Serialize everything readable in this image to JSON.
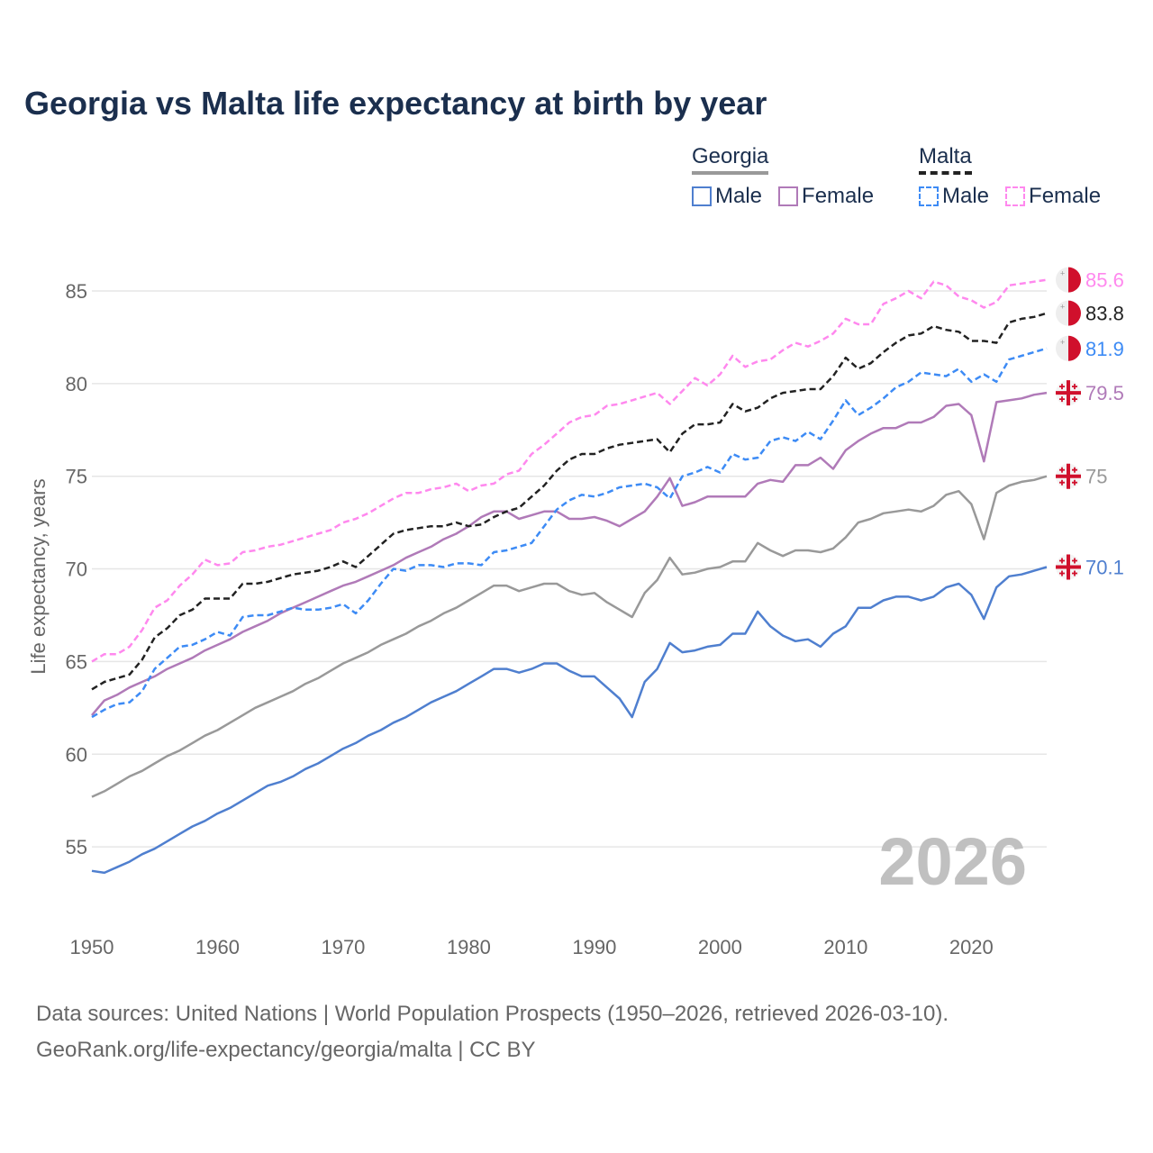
{
  "title": "Georgia vs Malta life expectancy at birth by year",
  "legend": {
    "georgia": {
      "label": "Georgia",
      "items": [
        {
          "label": "Male",
          "color": "#4f7fcf"
        },
        {
          "label": "Female",
          "color": "#b07ab8"
        }
      ]
    },
    "malta": {
      "label": "Malta",
      "items": [
        {
          "label": "Male",
          "color": "#3d8bf5"
        },
        {
          "label": "Female",
          "color": "#ff88ee"
        }
      ]
    }
  },
  "footer": {
    "line1": "Data sources: United Nations | World Population Prospects (1950–2026, retrieved 2026-03-10).",
    "line2": "GeoRank.org/life-expectancy/georgia/malta | CC BY"
  },
  "chart_data": {
    "type": "line",
    "title": "Georgia vs Malta life expectancy at birth by year",
    "xlabel": "",
    "ylabel": "Life expectancy, years",
    "xlim": [
      1950,
      2026
    ],
    "ylim": [
      52,
      87
    ],
    "xticks": [
      1950,
      1960,
      1970,
      1980,
      1990,
      2000,
      2010,
      2020
    ],
    "yticks": [
      55,
      60,
      65,
      70,
      75,
      80,
      85
    ],
    "grid": true,
    "year_watermark": "2026",
    "x_start": 1950,
    "series": [
      {
        "name": "Malta Female",
        "country": "Malta",
        "color": "#ff88ee",
        "dashed": true,
        "end_label": "85.6",
        "flag": "malta",
        "values": [
          65.0,
          65.4,
          65.4,
          65.8,
          66.7,
          67.9,
          68.3,
          69.1,
          69.7,
          70.5,
          70.2,
          70.3,
          70.9,
          71.0,
          71.2,
          71.3,
          71.5,
          71.7,
          71.9,
          72.1,
          72.5,
          72.7,
          73.0,
          73.4,
          73.8,
          74.1,
          74.1,
          74.3,
          74.4,
          74.6,
          74.2,
          74.5,
          74.6,
          75.1,
          75.3,
          76.2,
          76.7,
          77.3,
          77.9,
          78.2,
          78.3,
          78.8,
          78.9,
          79.1,
          79.3,
          79.5,
          78.9,
          79.6,
          80.3,
          79.9,
          80.5,
          81.5,
          80.9,
          81.2,
          81.3,
          81.8,
          82.2,
          82.0,
          82.3,
          82.7,
          83.5,
          83.2,
          83.2,
          84.3,
          84.6,
          85.0,
          84.6,
          85.5,
          85.3,
          84.7,
          84.5,
          84.1,
          84.4,
          85.3,
          85.4,
          85.5,
          85.6
        ]
      },
      {
        "name": "Malta",
        "country": "Malta",
        "color": "#222222",
        "dashed": true,
        "end_label": "83.8",
        "flag": "malta",
        "values": [
          63.5,
          63.9,
          64.1,
          64.3,
          65.1,
          66.3,
          66.8,
          67.5,
          67.8,
          68.4,
          68.4,
          68.4,
          69.2,
          69.2,
          69.3,
          69.5,
          69.7,
          69.8,
          69.9,
          70.1,
          70.4,
          70.1,
          70.7,
          71.3,
          71.9,
          72.1,
          72.2,
          72.3,
          72.3,
          72.5,
          72.3,
          72.4,
          72.8,
          73.1,
          73.3,
          73.9,
          74.5,
          75.3,
          75.9,
          76.2,
          76.2,
          76.5,
          76.7,
          76.8,
          76.9,
          77.0,
          76.3,
          77.3,
          77.8,
          77.8,
          77.9,
          78.9,
          78.5,
          78.7,
          79.2,
          79.5,
          79.6,
          79.7,
          79.7,
          80.4,
          81.4,
          80.8,
          81.1,
          81.7,
          82.2,
          82.6,
          82.7,
          83.1,
          82.9,
          82.8,
          82.3,
          82.3,
          82.2,
          83.3,
          83.5,
          83.6,
          83.8
        ]
      },
      {
        "name": "Malta Male",
        "country": "Malta",
        "color": "#3d8bf5",
        "dashed": true,
        "end_label": "81.9",
        "flag": "malta",
        "values": [
          62.0,
          62.4,
          62.7,
          62.8,
          63.4,
          64.6,
          65.2,
          65.8,
          65.9,
          66.2,
          66.6,
          66.4,
          67.4,
          67.5,
          67.5,
          67.7,
          67.9,
          67.8,
          67.8,
          67.9,
          68.1,
          67.6,
          68.3,
          69.2,
          70.0,
          69.9,
          70.2,
          70.2,
          70.1,
          70.3,
          70.3,
          70.2,
          70.9,
          71.0,
          71.2,
          71.4,
          72.3,
          73.2,
          73.7,
          74.0,
          73.9,
          74.1,
          74.4,
          74.5,
          74.6,
          74.4,
          73.8,
          75.0,
          75.2,
          75.5,
          75.2,
          76.2,
          75.9,
          76.0,
          76.9,
          77.1,
          76.9,
          77.4,
          77.0,
          78.0,
          79.1,
          78.3,
          78.7,
          79.2,
          79.8,
          80.1,
          80.6,
          80.5,
          80.4,
          80.8,
          80.1,
          80.5,
          80.1,
          81.3,
          81.5,
          81.7,
          81.9
        ]
      },
      {
        "name": "Georgia Female",
        "country": "Georgia",
        "color": "#b07ab8",
        "dashed": false,
        "end_label": "79.5",
        "flag": "georgia",
        "values": [
          62.1,
          62.9,
          63.2,
          63.6,
          63.9,
          64.2,
          64.6,
          64.9,
          65.2,
          65.6,
          65.9,
          66.2,
          66.6,
          66.9,
          67.2,
          67.6,
          67.9,
          68.2,
          68.5,
          68.8,
          69.1,
          69.3,
          69.6,
          69.9,
          70.2,
          70.6,
          70.9,
          71.2,
          71.6,
          71.9,
          72.3,
          72.8,
          73.1,
          73.1,
          72.7,
          72.9,
          73.1,
          73.1,
          72.7,
          72.7,
          72.8,
          72.6,
          72.3,
          72.7,
          73.1,
          73.9,
          74.9,
          73.4,
          73.6,
          73.9,
          73.9,
          73.9,
          73.9,
          74.6,
          74.8,
          74.7,
          75.6,
          75.6,
          76.0,
          75.4,
          76.4,
          76.9,
          77.3,
          77.6,
          77.6,
          77.9,
          77.9,
          78.2,
          78.8,
          78.9,
          78.3,
          75.8,
          79.0,
          79.1,
          79.2,
          79.4,
          79.5
        ]
      },
      {
        "name": "Georgia",
        "country": "Georgia",
        "color": "#999999",
        "dashed": false,
        "end_label": "75",
        "flag": "georgia",
        "values": [
          57.7,
          58.0,
          58.4,
          58.8,
          59.1,
          59.5,
          59.9,
          60.2,
          60.6,
          61.0,
          61.3,
          61.7,
          62.1,
          62.5,
          62.8,
          63.1,
          63.4,
          63.8,
          64.1,
          64.5,
          64.9,
          65.2,
          65.5,
          65.9,
          66.2,
          66.5,
          66.9,
          67.2,
          67.6,
          67.9,
          68.3,
          68.7,
          69.1,
          69.1,
          68.8,
          69.0,
          69.2,
          69.2,
          68.8,
          68.6,
          68.7,
          68.2,
          67.8,
          67.4,
          68.7,
          69.4,
          70.6,
          69.7,
          69.8,
          70.0,
          70.1,
          70.4,
          70.4,
          71.4,
          71.0,
          70.7,
          71.0,
          71.0,
          70.9,
          71.1,
          71.7,
          72.5,
          72.7,
          73.0,
          73.1,
          73.2,
          73.1,
          73.4,
          74.0,
          74.2,
          73.5,
          71.6,
          74.1,
          74.5,
          74.7,
          74.8,
          75.0
        ]
      },
      {
        "name": "Georgia Male",
        "country": "Georgia",
        "color": "#4f7fcf",
        "dashed": false,
        "end_label": "70.1",
        "flag": "georgia",
        "values": [
          53.7,
          53.6,
          53.9,
          54.2,
          54.6,
          54.9,
          55.3,
          55.7,
          56.1,
          56.4,
          56.8,
          57.1,
          57.5,
          57.9,
          58.3,
          58.5,
          58.8,
          59.2,
          59.5,
          59.9,
          60.3,
          60.6,
          61.0,
          61.3,
          61.7,
          62.0,
          62.4,
          62.8,
          63.1,
          63.4,
          63.8,
          64.2,
          64.6,
          64.6,
          64.4,
          64.6,
          64.9,
          64.9,
          64.5,
          64.2,
          64.2,
          63.6,
          63.0,
          62.0,
          63.9,
          64.6,
          66.0,
          65.5,
          65.6,
          65.8,
          65.9,
          66.5,
          66.5,
          67.7,
          66.9,
          66.4,
          66.1,
          66.2,
          65.8,
          66.5,
          66.9,
          67.9,
          67.9,
          68.3,
          68.5,
          68.5,
          68.3,
          68.5,
          69.0,
          69.2,
          68.6,
          67.3,
          69.0,
          69.6,
          69.7,
          69.9,
          70.1
        ]
      }
    ]
  }
}
